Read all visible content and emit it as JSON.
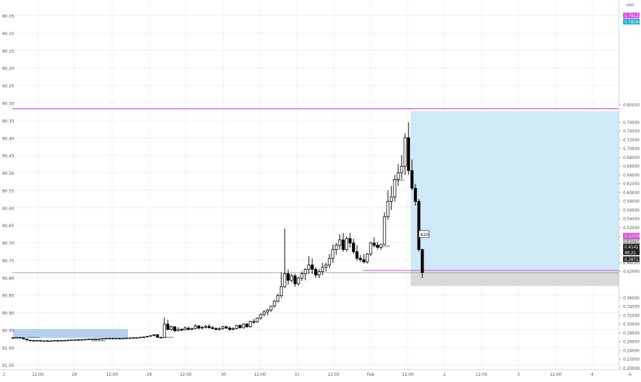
{
  "chart_data": {
    "type": "candlestick",
    "left_axis_ticks": [
      "90.05",
      "90.10",
      "90.15",
      "90.20",
      "90.25",
      "90.30",
      "90.35",
      "90.40",
      "90.45",
      "90.50",
      "90.55",
      "90.60",
      "90.65",
      "90.70",
      "90.75",
      "90.80",
      "90.85",
      "90.90",
      "90.95",
      "91.00",
      "91.05"
    ],
    "right_axis_ticks": [
      "0.80000",
      "0.76000",
      "0.74000",
      "0.72000",
      "0.70000",
      "0.68000",
      "0.66000",
      "0.64000",
      "0.62000",
      "0.60000",
      "0.58000",
      "0.56000",
      "0.54000",
      "0.52000",
      "0.50000",
      "0.48000",
      "0.46000",
      "0.44000",
      "0.42000",
      "0.36000",
      "0.34000",
      "0.32000",
      "0.30000",
      "0.28000",
      "0.26000",
      "0.24000",
      "0.22000",
      "0.20000"
    ],
    "right_axis_unit": "USD",
    "x_ticks": [
      "12:00",
      "28",
      "12:00",
      "29",
      "12:00",
      "30",
      "12:00",
      "31",
      "12:00",
      "Feb",
      "12:00",
      "2",
      "12:00",
      "3",
      "12:00",
      "4"
    ],
    "price_labels": [
      {
        "text": "0.79122",
        "kind": "magenta"
      },
      {
        "text": "0.78564",
        "kind": "cyan"
      },
      {
        "text": "0.42000",
        "kind": "magenta"
      },
      {
        "text": "0.41756",
        "kind": "gray"
      },
      {
        "text": "0.41411",
        "kind": "black"
      },
      {
        "text": "46:21",
        "kind": "black"
      },
      {
        "text": "0.38711",
        "kind": "black"
      }
    ],
    "annotation": "420",
    "horizontal_lines": [
      {
        "price": 0.7912,
        "color": "#e040e0"
      },
      {
        "price": 0.4175,
        "color": "#9e9e9e"
      }
    ],
    "long_position": {
      "entry": 0.42,
      "target": 0.7856,
      "stop": 0.3871
    },
    "candles": [
      [
        0.2689,
        0.2699,
        0.2686,
        0.2695
      ],
      [
        0.2695,
        0.2702,
        0.2691,
        0.2698
      ],
      [
        0.2698,
        0.27,
        0.2686,
        0.269
      ],
      [
        0.269,
        0.2694,
        0.2657,
        0.2663
      ],
      [
        0.2663,
        0.2666,
        0.2632,
        0.2636
      ],
      [
        0.2636,
        0.264,
        0.262,
        0.2627
      ],
      [
        0.2627,
        0.263,
        0.2615,
        0.2622
      ],
      [
        0.2622,
        0.2633,
        0.2612,
        0.2628
      ],
      [
        0.2628,
        0.2634,
        0.2607,
        0.2615
      ],
      [
        0.2615,
        0.2627,
        0.26,
        0.2623
      ],
      [
        0.2623,
        0.2632,
        0.2612,
        0.2617
      ],
      [
        0.2617,
        0.2626,
        0.2608,
        0.2622
      ],
      [
        0.2622,
        0.2631,
        0.2615,
        0.2627
      ],
      [
        0.2627,
        0.2634,
        0.2615,
        0.262
      ],
      [
        0.262,
        0.2633,
        0.2615,
        0.2629
      ],
      [
        0.2629,
        0.2638,
        0.2623,
        0.2634
      ],
      [
        0.2634,
        0.2642,
        0.2626,
        0.2638
      ],
      [
        0.2638,
        0.2647,
        0.2628,
        0.2642
      ],
      [
        0.2642,
        0.2653,
        0.2633,
        0.2647
      ],
      [
        0.2647,
        0.2652,
        0.2637,
        0.2643
      ],
      [
        0.2643,
        0.2655,
        0.2638,
        0.265
      ],
      [
        0.265,
        0.266,
        0.2642,
        0.2655
      ],
      [
        0.2655,
        0.2666,
        0.2648,
        0.266
      ],
      [
        0.266,
        0.2669,
        0.2654,
        0.2664
      ],
      [
        0.2664,
        0.2669,
        0.2655,
        0.2661
      ],
      [
        0.2661,
        0.2671,
        0.2653,
        0.2666
      ],
      [
        0.2666,
        0.2677,
        0.266,
        0.2672
      ],
      [
        0.2672,
        0.2682,
        0.2664,
        0.2677
      ],
      [
        0.2677,
        0.2686,
        0.267,
        0.268
      ],
      [
        0.268,
        0.2685,
        0.2669,
        0.2675
      ],
      [
        0.2675,
        0.2684,
        0.2667,
        0.268
      ],
      [
        0.268,
        0.2686,
        0.2671,
        0.2677
      ],
      [
        0.2677,
        0.2686,
        0.2669,
        0.2681
      ],
      [
        0.2681,
        0.269,
        0.2674,
        0.2685
      ],
      [
        0.2685,
        0.2693,
        0.2677,
        0.2688
      ],
      [
        0.2688,
        0.2697,
        0.2681,
        0.2693
      ],
      [
        0.2693,
        0.27,
        0.2685,
        0.2696
      ],
      [
        0.2696,
        0.2708,
        0.269,
        0.2703
      ],
      [
        0.2703,
        0.2713,
        0.2697,
        0.2708
      ],
      [
        0.2708,
        0.273,
        0.27,
        0.2721
      ],
      [
        0.2721,
        0.2742,
        0.2712,
        0.2739
      ],
      [
        0.2739,
        0.278,
        0.272,
        0.276
      ],
      [
        0.276,
        0.277,
        0.269,
        0.27
      ],
      [
        0.27,
        0.271,
        0.268,
        0.2695
      ],
      [
        0.2695,
        0.315,
        0.269,
        0.3
      ],
      [
        0.3,
        0.31,
        0.286,
        0.288
      ],
      [
        0.288,
        0.297,
        0.285,
        0.294
      ],
      [
        0.294,
        0.295,
        0.282,
        0.285
      ],
      [
        0.285,
        0.293,
        0.283,
        0.288
      ],
      [
        0.288,
        0.291,
        0.284,
        0.287
      ],
      [
        0.287,
        0.295,
        0.286,
        0.291
      ],
      [
        0.291,
        0.294,
        0.286,
        0.288
      ],
      [
        0.288,
        0.292,
        0.286,
        0.29
      ],
      [
        0.29,
        0.3,
        0.288,
        0.296
      ],
      [
        0.296,
        0.298,
        0.288,
        0.291
      ],
      [
        0.291,
        0.296,
        0.288,
        0.293
      ],
      [
        0.293,
        0.299,
        0.29,
        0.295
      ],
      [
        0.295,
        0.3,
        0.29,
        0.292
      ],
      [
        0.292,
        0.296,
        0.288,
        0.29
      ],
      [
        0.29,
        0.293,
        0.286,
        0.288
      ],
      [
        0.288,
        0.293,
        0.285,
        0.29
      ],
      [
        0.29,
        0.296,
        0.287,
        0.294
      ],
      [
        0.294,
        0.297,
        0.289,
        0.291
      ],
      [
        0.291,
        0.295,
        0.285,
        0.288
      ],
      [
        0.288,
        0.293,
        0.286,
        0.29
      ],
      [
        0.29,
        0.299,
        0.288,
        0.297
      ],
      [
        0.297,
        0.3,
        0.29,
        0.292
      ],
      [
        0.292,
        0.302,
        0.29,
        0.3
      ],
      [
        0.3,
        0.303,
        0.292,
        0.294
      ],
      [
        0.294,
        0.308,
        0.292,
        0.306
      ],
      [
        0.306,
        0.312,
        0.3,
        0.305
      ],
      [
        0.305,
        0.315,
        0.303,
        0.314
      ],
      [
        0.314,
        0.325,
        0.31,
        0.322
      ],
      [
        0.322,
        0.332,
        0.318,
        0.328
      ],
      [
        0.328,
        0.335,
        0.32,
        0.332
      ],
      [
        0.332,
        0.342,
        0.328,
        0.341
      ],
      [
        0.341,
        0.355,
        0.338,
        0.352
      ],
      [
        0.352,
        0.37,
        0.35,
        0.365
      ],
      [
        0.365,
        0.418,
        0.36,
        0.385
      ],
      [
        0.385,
        0.518,
        0.382,
        0.415
      ],
      [
        0.415,
        0.425,
        0.39,
        0.4
      ],
      [
        0.4,
        0.415,
        0.395,
        0.41
      ],
      [
        0.41,
        0.415,
        0.385,
        0.392
      ],
      [
        0.392,
        0.408,
        0.388,
        0.405
      ],
      [
        0.405,
        0.42,
        0.399,
        0.415
      ],
      [
        0.415,
        0.428,
        0.4,
        0.425
      ],
      [
        0.425,
        0.455,
        0.415,
        0.435
      ],
      [
        0.435,
        0.45,
        0.415,
        0.425
      ],
      [
        0.425,
        0.43,
        0.406,
        0.412
      ],
      [
        0.412,
        0.425,
        0.405,
        0.42
      ],
      [
        0.42,
        0.44,
        0.412,
        0.43
      ],
      [
        0.43,
        0.44,
        0.42,
        0.435
      ],
      [
        0.435,
        0.46,
        0.428,
        0.45
      ],
      [
        0.45,
        0.482,
        0.44,
        0.47
      ],
      [
        0.47,
        0.485,
        0.458,
        0.48
      ],
      [
        0.48,
        0.505,
        0.47,
        0.492
      ],
      [
        0.492,
        0.508,
        0.465,
        0.47
      ],
      [
        0.47,
        0.5,
        0.465,
        0.495
      ],
      [
        0.495,
        0.508,
        0.475,
        0.485
      ],
      [
        0.485,
        0.495,
        0.46,
        0.465
      ],
      [
        0.465,
        0.48,
        0.445,
        0.45
      ],
      [
        0.45,
        0.458,
        0.442,
        0.447
      ],
      [
        0.447,
        0.46,
        0.438,
        0.442
      ],
      [
        0.442,
        0.462,
        0.438,
        0.46
      ],
      [
        0.46,
        0.488,
        0.455,
        0.485
      ],
      [
        0.485,
        0.498,
        0.475,
        0.48
      ],
      [
        0.48,
        0.488,
        0.47,
        0.475
      ],
      [
        0.475,
        0.483,
        0.47,
        0.482
      ],
      [
        0.482,
        0.555,
        0.48,
        0.545
      ],
      [
        0.545,
        0.605,
        0.538,
        0.58
      ],
      [
        0.58,
        0.615,
        0.56,
        0.59
      ],
      [
        0.59,
        0.64,
        0.58,
        0.63
      ],
      [
        0.63,
        0.665,
        0.615,
        0.645
      ],
      [
        0.645,
        0.685,
        0.63,
        0.66
      ],
      [
        0.66,
        0.735,
        0.64,
        0.725
      ],
      [
        0.725,
        0.76,
        0.64,
        0.65
      ],
      [
        0.65,
        0.675,
        0.605,
        0.61
      ],
      [
        0.61,
        0.62,
        0.57,
        0.58
      ],
      [
        0.58,
        0.585,
        0.465,
        0.47
      ],
      [
        0.47,
        0.472,
        0.405,
        0.4175
      ]
    ]
  }
}
